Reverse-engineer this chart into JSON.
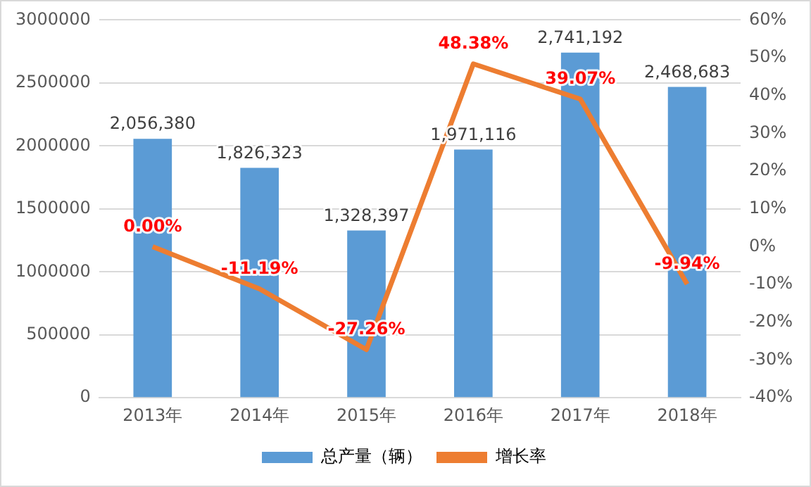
{
  "chart_data": {
    "type": "bar",
    "categories": [
      "2013年",
      "2014年",
      "2015年",
      "2016年",
      "2017年",
      "2018年"
    ],
    "series": [
      {
        "name": "总产量（辆）",
        "color": "#5b9bd5",
        "values": [
          2056380,
          1826323,
          1328397,
          1971116,
          2741192,
          2468683
        ],
        "value_labels": [
          "2,056,380",
          "1,826,323",
          "1,328,397",
          "1,971,116",
          "2,741,192",
          "2,468,683"
        ]
      },
      {
        "name": "增长率",
        "type": "line",
        "axis": "y2",
        "color": "#ed7d31",
        "values": [
          0,
          -11.19,
          -27.26,
          48.38,
          39.07,
          -9.94
        ],
        "value_labels": [
          "0.00%",
          "-11.19%",
          "-27.26%",
          "48.38%",
          "39.07%",
          "-9.94%"
        ]
      }
    ],
    "ylim": [
      0,
      3000000
    ],
    "yticks": [
      0,
      500000,
      1000000,
      1500000,
      2000000,
      2500000,
      3000000
    ],
    "y2lim": [
      -40,
      60
    ],
    "y2ticks": [
      {
        "value": -40,
        "label": "-40%"
      },
      {
        "value": -30,
        "label": "-30%"
      },
      {
        "value": -20,
        "label": "-20%"
      },
      {
        "value": -10,
        "label": "-10%"
      },
      {
        "value": 0,
        "label": "0%"
      },
      {
        "value": 10,
        "label": "10%"
      },
      {
        "value": 20,
        "label": "20%"
      },
      {
        "value": 30,
        "label": "30%"
      },
      {
        "value": 40,
        "label": "40%"
      },
      {
        "value": 50,
        "label": "50%"
      },
      {
        "value": 60,
        "label": "60%"
      }
    ],
    "grid": "y",
    "legend": "bottom",
    "marker": "none"
  }
}
